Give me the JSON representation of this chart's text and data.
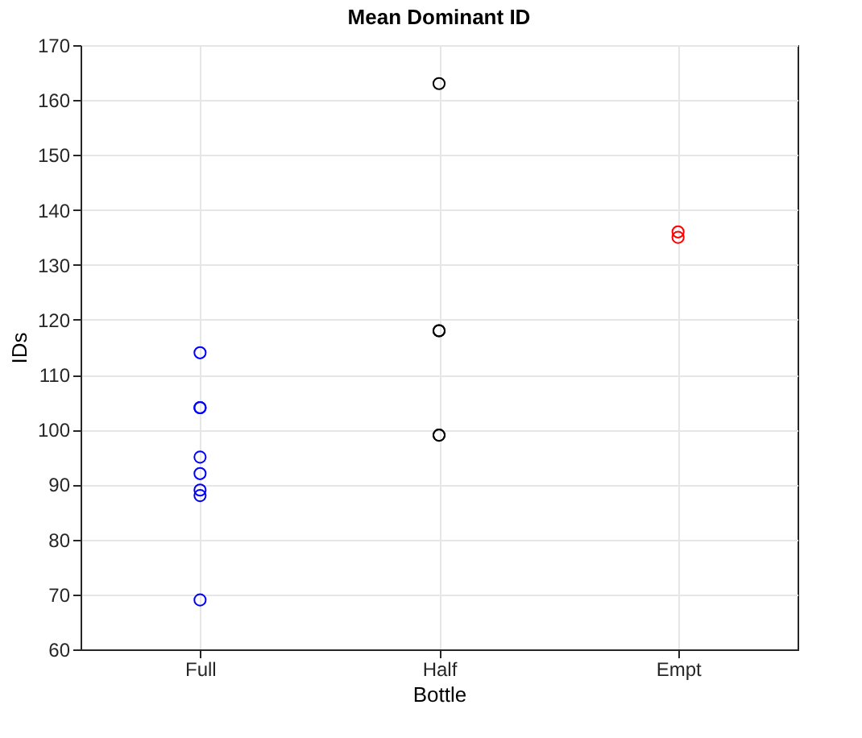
{
  "chart_data": {
    "type": "scatter",
    "title": "Mean Dominant ID",
    "xlabel": "Bottle",
    "ylabel": "IDs",
    "categories": [
      "Full",
      "Half",
      "Empt"
    ],
    "series": [
      {
        "color": "#0000ff",
        "x": [
          "Full",
          "Full",
          "Full",
          "Full",
          "Full",
          "Full",
          "Full",
          "Full"
        ],
        "values": [
          114,
          104,
          104,
          95,
          92,
          89,
          88,
          69
        ]
      },
      {
        "color": "#000000",
        "x": [
          "Half",
          "Half",
          "Half",
          "Half",
          "Half"
        ],
        "values": [
          163,
          118,
          118,
          99,
          99
        ]
      },
      {
        "color": "#ff0000",
        "x": [
          "Empt",
          "Empt"
        ],
        "values": [
          136,
          135
        ]
      }
    ],
    "ylim": [
      60,
      170
    ],
    "yticks": [
      60,
      70,
      80,
      90,
      100,
      110,
      120,
      130,
      140,
      150,
      160,
      170
    ],
    "grid": true,
    "marker": "circle"
  }
}
